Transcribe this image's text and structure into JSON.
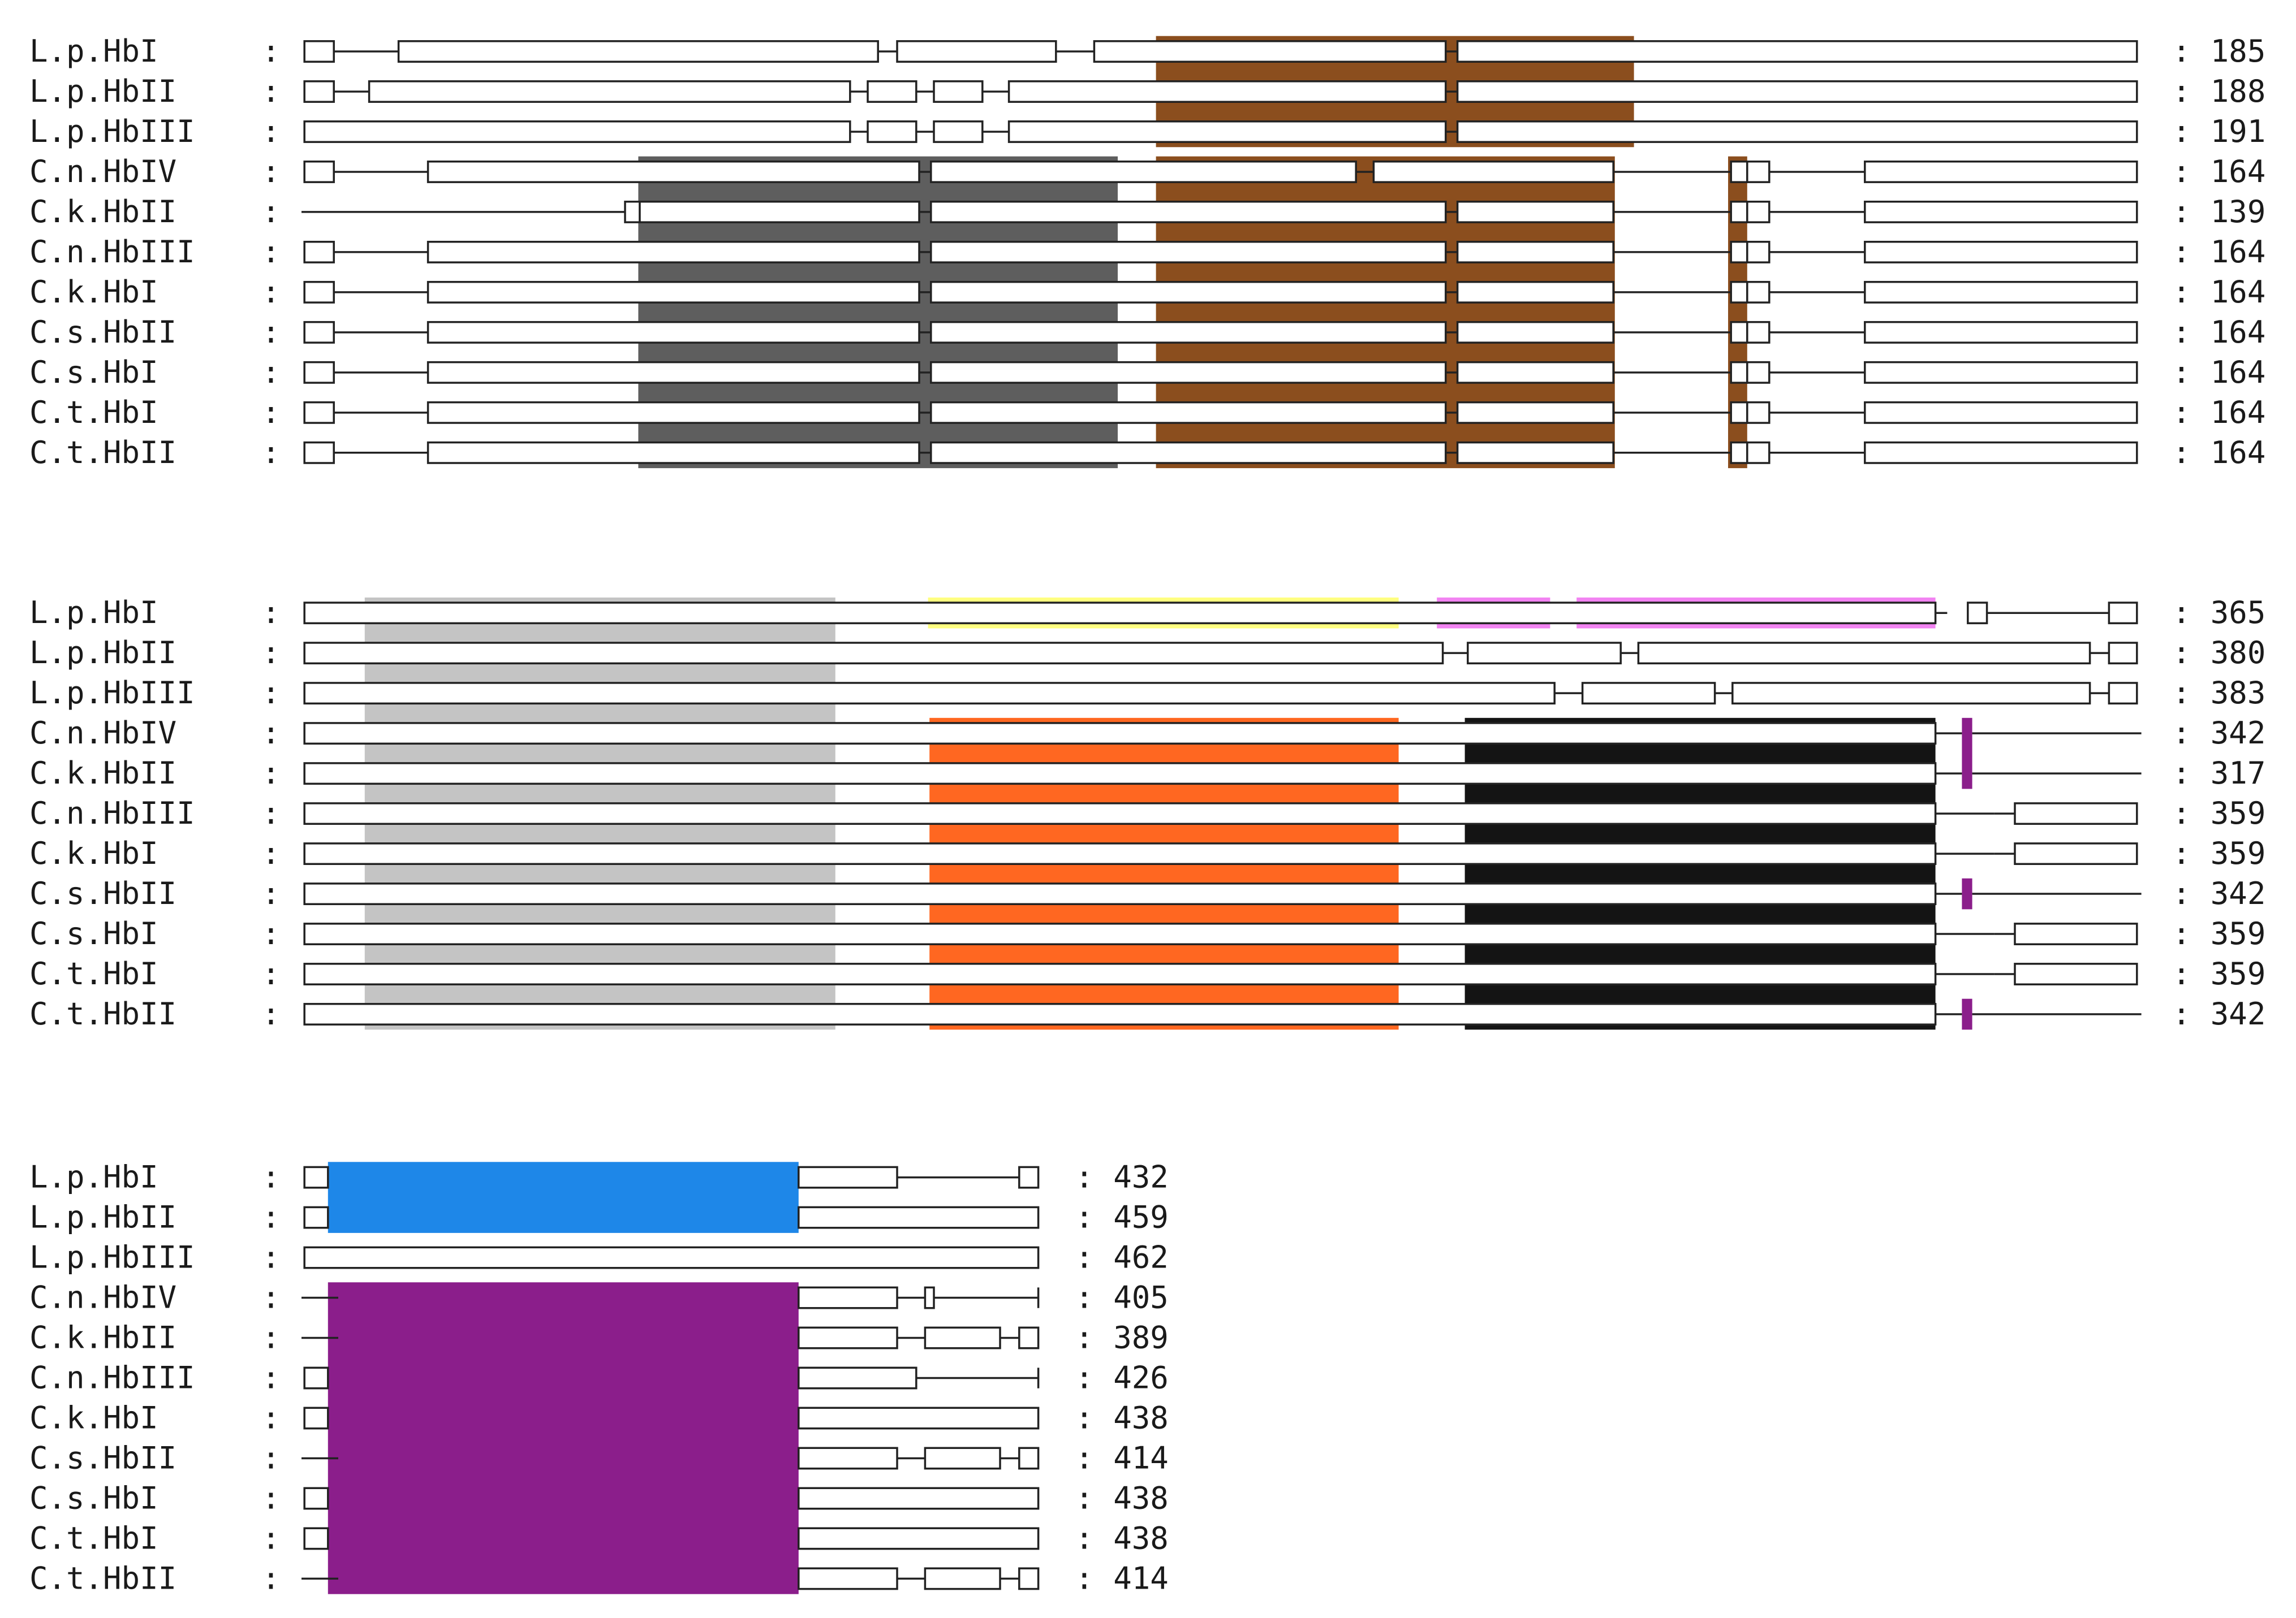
{
  "figure": {
    "colors": {
      "brown": "#8b4e1e",
      "dark_gray": "#5e5e5e",
      "light_gray": "#c4c4c4",
      "yellow": "#ffff80",
      "pink": "#f283f2",
      "orange": "#ff6721",
      "black": "#141414",
      "blue": "#1e87e8",
      "purple": "#8b1e8b",
      "outline": "#222222"
    },
    "blocks": [
      {
        "rows": [
          {
            "label": "L.p.HbI",
            "count": "185"
          },
          {
            "label": "L.p.HbII",
            "count": "188"
          },
          {
            "label": "L.p.HbIII",
            "count": "191"
          },
          {
            "label": "C.n.HbIV",
            "count": "164"
          },
          {
            "label": "C.k.HbII",
            "count": "139"
          },
          {
            "label": "C.n.HbIII",
            "count": "164"
          },
          {
            "label": "C.k.HbI",
            "count": "164"
          },
          {
            "label": "C.s.HbII",
            "count": "164"
          },
          {
            "label": "C.s.HbI",
            "count": "164"
          },
          {
            "label": "C.t.HbI",
            "count": "164"
          },
          {
            "label": "C.t.HbII",
            "count": "164"
          }
        ]
      },
      {
        "rows": [
          {
            "label": "L.p.HbI",
            "count": "365"
          },
          {
            "label": "L.p.HbII",
            "count": "380"
          },
          {
            "label": "L.p.HbIII",
            "count": "383"
          },
          {
            "label": "C.n.HbIV",
            "count": "342"
          },
          {
            "label": "C.k.HbII",
            "count": "317"
          },
          {
            "label": "C.n.HbIII",
            "count": "359"
          },
          {
            "label": "C.k.HbI",
            "count": "359"
          },
          {
            "label": "C.s.HbII",
            "count": "342"
          },
          {
            "label": "C.s.HbI",
            "count": "359"
          },
          {
            "label": "C.t.HbI",
            "count": "359"
          },
          {
            "label": "C.t.HbII",
            "count": "342"
          }
        ]
      },
      {
        "rows": [
          {
            "label": "L.p.HbI",
            "count": "432"
          },
          {
            "label": "L.p.HbII",
            "count": "459"
          },
          {
            "label": "L.p.HbIII",
            "count": "462"
          },
          {
            "label": "C.n.HbIV",
            "count": "405"
          },
          {
            "label": "C.k.HbII",
            "count": "389"
          },
          {
            "label": "C.n.HbIII",
            "count": "426"
          },
          {
            "label": "C.k.HbI",
            "count": "438"
          },
          {
            "label": "C.s.HbII",
            "count": "414"
          },
          {
            "label": "C.s.HbI",
            "count": "438"
          },
          {
            "label": "C.t.HbI",
            "count": "438"
          },
          {
            "label": "C.t.HbII",
            "count": "414"
          }
        ]
      }
    ]
  }
}
